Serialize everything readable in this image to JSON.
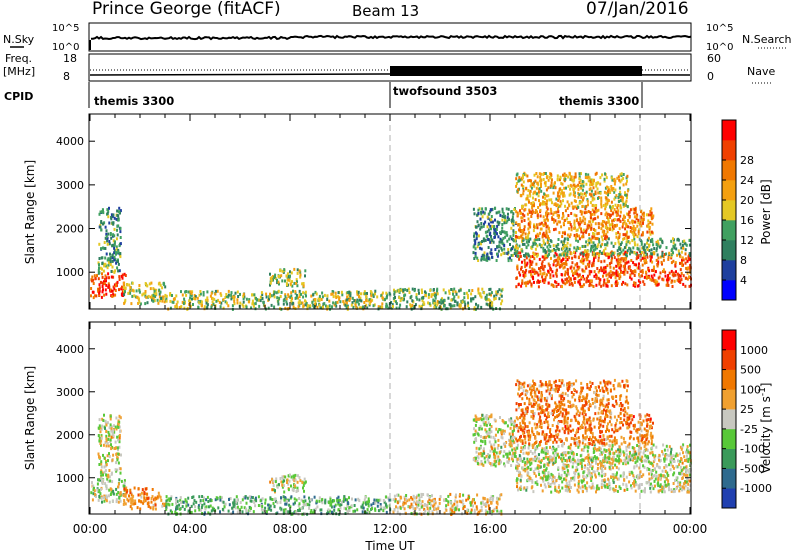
{
  "header": {
    "station": "Prince George (fitACF)",
    "beam": "Beam 13",
    "date": "07/Jan/2016"
  },
  "panels": {
    "nsky_label": "N.Sky",
    "nsearch_label": "N.Search",
    "nsky_ticks": [
      "10^5",
      "10^0"
    ],
    "nsearch_ticks": [
      "10^5",
      "10^0"
    ],
    "freq_label_1": "Freq.",
    "freq_label_2": "[MHz]",
    "freq_ticks": [
      "18",
      "8"
    ],
    "nave_label": "Nave",
    "nave_ticks": [
      "60",
      "0"
    ],
    "cpid_label": "CPID",
    "cpid_segments": [
      {
        "name": "themis 3300",
        "start_h": 0,
        "end_h": 12
      },
      {
        "name": "twofsound 3503",
        "start_h": 12,
        "end_h": 22
      },
      {
        "name": "themis 3300",
        "start_h": 22,
        "end_h": 24
      }
    ]
  },
  "chart_data": [
    {
      "type": "heatmap",
      "title": "",
      "quantity": "Power",
      "xlabel": "",
      "ylabel": "Slant Range [km]",
      "xlim": [
        0,
        24
      ],
      "ylim": [
        180,
        4600
      ],
      "y_ticks": [
        1000,
        2000,
        3000,
        4000
      ],
      "colorbar_label": "Power [dB]",
      "colorbar_range": [
        0,
        32
      ],
      "colorbar_ticks": [
        "4",
        "8",
        "12",
        "16",
        "20",
        "24",
        "28"
      ],
      "colorbar_colors": [
        "#0000ff",
        "#1e3f9e",
        "#2f7f5f",
        "#40a060",
        "#e4c824",
        "#f4a010",
        "#f07800",
        "#f04000",
        "#ff0000"
      ],
      "regions": [
        {
          "t0": 0.0,
          "t1": 1.4,
          "r0": 450,
          "r1": 1000,
          "level": 0.85
        },
        {
          "t0": 0.3,
          "t1": 1.2,
          "r0": 1000,
          "r1": 2500,
          "level": 0.35
        },
        {
          "t0": 1.3,
          "t1": 3.0,
          "r0": 300,
          "r1": 800,
          "level": 0.5
        },
        {
          "t0": 3.0,
          "t1": 12.0,
          "r0": 180,
          "r1": 600,
          "level": 0.45
        },
        {
          "t0": 7.1,
          "t1": 8.6,
          "r0": 700,
          "r1": 1100,
          "level": 0.45
        },
        {
          "t0": 12.0,
          "t1": 16.5,
          "r0": 180,
          "r1": 650,
          "level": 0.4
        },
        {
          "t0": 15.3,
          "t1": 17.0,
          "r0": 1300,
          "r1": 2500,
          "level": 0.3
        },
        {
          "t0": 17.0,
          "t1": 24.0,
          "r0": 700,
          "r1": 1500,
          "level": 0.8
        },
        {
          "t0": 16.8,
          "t1": 24.0,
          "r0": 1400,
          "r1": 1800,
          "level": 0.4
        },
        {
          "t0": 17.0,
          "t1": 22.5,
          "r0": 1800,
          "r1": 2500,
          "level": 0.7
        },
        {
          "t0": 17.0,
          "t1": 21.5,
          "r0": 2500,
          "r1": 3300,
          "level": 0.55
        }
      ]
    },
    {
      "type": "heatmap",
      "title": "",
      "quantity": "Velocity",
      "xlabel": "Time UT",
      "ylabel": "Slant Range [km]",
      "xlim": [
        0,
        24
      ],
      "ylim": [
        180,
        4600
      ],
      "y_ticks": [
        1000,
        2000,
        3000,
        4000
      ],
      "x_ticks": [
        "00:00",
        "04:00",
        "08:00",
        "12:00",
        "16:00",
        "20:00",
        "00:00"
      ],
      "x_tick_hours": [
        0,
        4,
        8,
        12,
        16,
        20,
        24
      ],
      "colorbar_label": "Velocity [m s^-1]",
      "colorbar_ticks": [
        "1000",
        "500",
        "100",
        "25",
        "-25",
        "-100",
        "-500",
        "-1000"
      ],
      "colorbar_colors": [
        "#2040b0",
        "#2e6a8e",
        "#3a9a5a",
        "#58c838",
        "#c8c8c0",
        "#f0a030",
        "#f07800",
        "#f04000",
        "#ff0000"
      ],
      "regions": [
        {
          "t0": 0.0,
          "t1": 1.4,
          "r0": 450,
          "r1": 1000,
          "level": 0.45
        },
        {
          "t0": 0.3,
          "t1": 1.2,
          "r0": 1000,
          "r1": 2500,
          "level": 0.5
        },
        {
          "t0": 1.3,
          "t1": 3.0,
          "r0": 300,
          "r1": 800,
          "level": 0.7
        },
        {
          "t0": 3.0,
          "t1": 12.0,
          "r0": 180,
          "r1": 600,
          "level": 0.35
        },
        {
          "t0": 7.1,
          "t1": 8.6,
          "r0": 700,
          "r1": 1100,
          "level": 0.5
        },
        {
          "t0": 12.0,
          "t1": 16.5,
          "r0": 180,
          "r1": 650,
          "level": 0.55
        },
        {
          "t0": 15.3,
          "t1": 17.0,
          "r0": 1300,
          "r1": 2500,
          "level": 0.5
        },
        {
          "t0": 17.0,
          "t1": 24.0,
          "r0": 700,
          "r1": 1500,
          "level": 0.5
        },
        {
          "t0": 16.8,
          "t1": 24.0,
          "r0": 1400,
          "r1": 1800,
          "level": 0.5
        },
        {
          "t0": 17.0,
          "t1": 22.5,
          "r0": 1800,
          "r1": 2500,
          "level": 0.72
        },
        {
          "t0": 17.0,
          "t1": 21.5,
          "r0": 2500,
          "r1": 3300,
          "level": 0.7
        }
      ]
    }
  ]
}
